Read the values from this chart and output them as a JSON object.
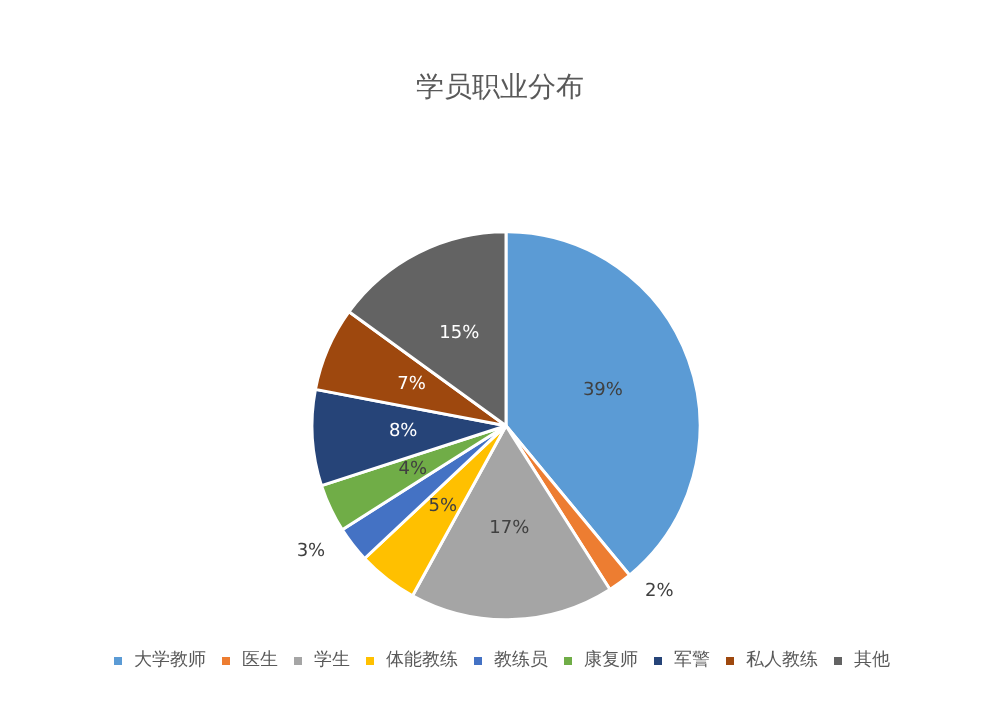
{
  "chart_data": {
    "type": "pie",
    "title": "学员职业分布",
    "categories": [
      "大学教师",
      "医生",
      "学生",
      "体能教练",
      "教练员",
      "康复师",
      "军警",
      "私人教练",
      "其他"
    ],
    "values": [
      39,
      2,
      17,
      5,
      3,
      4,
      8,
      7,
      15
    ],
    "colors": [
      "#5b9bd5",
      "#ed7d31",
      "#a5a5a5",
      "#ffc000",
      "#4472c4",
      "#70ad47",
      "#264478",
      "#9e480e",
      "#636363"
    ],
    "value_labels": [
      "39%",
      "2%",
      "17%",
      "5%",
      "3%",
      "4%",
      "8%",
      "7%",
      "15%"
    ],
    "legend": "bottom"
  }
}
